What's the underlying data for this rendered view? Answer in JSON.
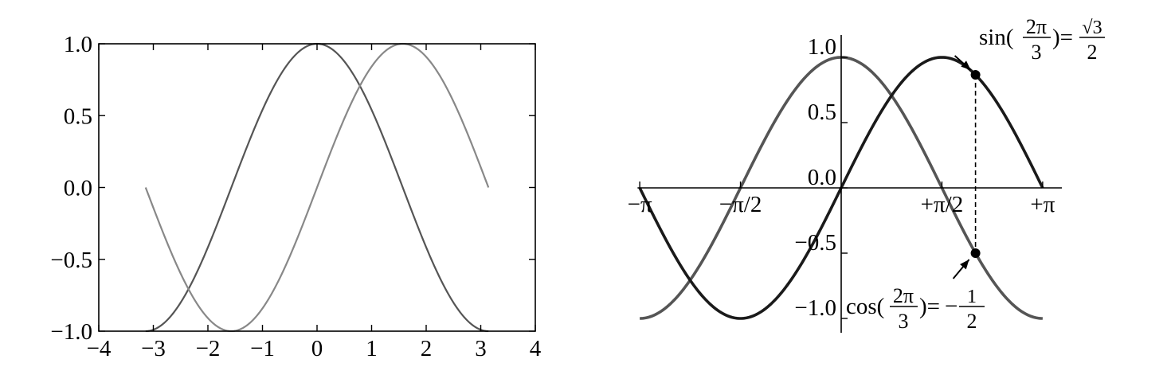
{
  "chart_data": [
    {
      "type": "line",
      "xlim": [
        -4,
        4
      ],
      "ylim": [
        -1.0,
        1.0
      ],
      "grid": false,
      "x_ticks": [
        -4,
        -3,
        -2,
        -1,
        0,
        1,
        2,
        3,
        4
      ],
      "x_tick_labels": [
        "−4",
        "−3",
        "−2",
        "−1",
        "0",
        "1",
        "2",
        "3",
        "4"
      ],
      "y_ticks": [
        1.0,
        0.5,
        0.0,
        -0.5,
        -1.0
      ],
      "y_tick_labels": [
        "1.0",
        "0.5",
        "0.0",
        "−0.5",
        "−1.0"
      ],
      "series": [
        {
          "function": "cos",
          "x_range": [
            -3.14159,
            3.14159
          ],
          "color": "#555555"
        },
        {
          "function": "sin",
          "x_range": [
            -3.14159,
            3.14159
          ],
          "color": "#888888"
        }
      ]
    },
    {
      "type": "line",
      "xlim": [
        -3.3,
        4.5
      ],
      "ylim": [
        -1.0,
        1.0
      ],
      "grid": false,
      "x_ticks": [
        -3.14159,
        -1.5708,
        1.5708,
        3.14159
      ],
      "x_tick_labels": [
        "−π",
        "−π/2",
        "+π/2",
        "+π"
      ],
      "y_ticks": [
        1.0,
        0.5,
        0.0,
        -0.5,
        -1.0
      ],
      "y_tick_labels": [
        "1.0",
        "0.5",
        "0.0",
        "−0.5",
        "−1.0"
      ],
      "series": [
        {
          "function": "cos",
          "x_range": [
            -3.14159,
            3.14159
          ],
          "color": "#555555"
        },
        {
          "function": "sin",
          "x_range": [
            -3.14159,
            3.14159
          ],
          "color": "#1a1a1a"
        }
      ],
      "annotations": [
        {
          "x": 2.0944,
          "y": 0.866,
          "func": "sin",
          "num": "2π",
          "den": "3",
          "rhs_num": "√3",
          "rhs_den": "2",
          "prefix": "sin(",
          "mid": ")=",
          "sign": ""
        },
        {
          "x": 2.0944,
          "y": -0.5,
          "func": "cos",
          "num": "2π",
          "den": "3",
          "rhs_num": "1",
          "rhs_den": "2",
          "prefix": "cos(",
          "mid": ")=",
          "sign": "−"
        }
      ]
    }
  ]
}
